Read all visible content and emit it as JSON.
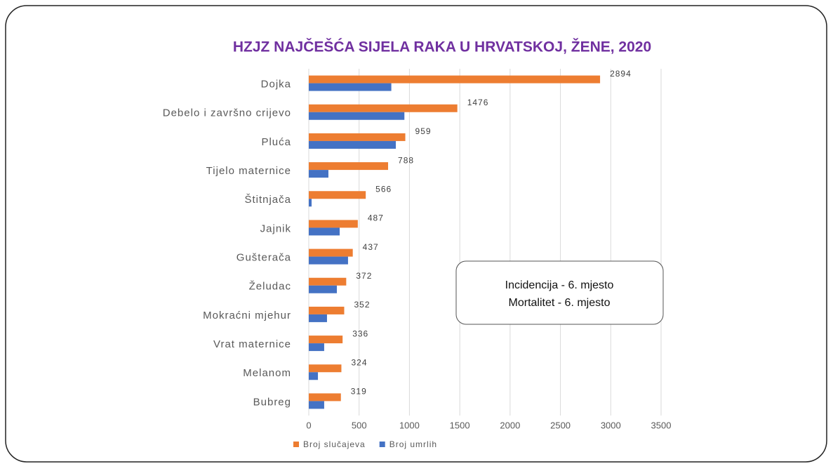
{
  "chart_data": {
    "type": "hbar",
    "title": "HZJZ NAJČEŠĆA SIJELA RAKA U HRVATSKOJ, ŽENE, 2020",
    "categories": [
      "Dojka",
      "Debelo i završno crijevo",
      "Pluća",
      "Tijelo maternice",
      "Štitnjača",
      "Jajnik",
      "Gušterača",
      "Želudac",
      "Mokraćni mjehur",
      "Vrat maternice",
      "Melanom",
      "Bubreg"
    ],
    "series": [
      {
        "name": "Broj slučajeva",
        "color": "#ed7d31",
        "values": [
          2894,
          1476,
          959,
          788,
          566,
          487,
          437,
          372,
          352,
          336,
          324,
          319
        ]
      },
      {
        "name": "Broj umrlih",
        "color": "#4472c4",
        "values": [
          820,
          950,
          865,
          195,
          28,
          307,
          390,
          279,
          181,
          153,
          91,
          153
        ]
      }
    ],
    "xlim": [
      0,
      3500
    ],
    "xticks": [
      0,
      500,
      1000,
      1500,
      2000,
      2500,
      3000,
      3500
    ],
    "grid": true,
    "legend": "bottom",
    "annotations": [
      "Incidencija - 6. mjesto",
      "Mortalitet - 6. mjesto"
    ]
  }
}
